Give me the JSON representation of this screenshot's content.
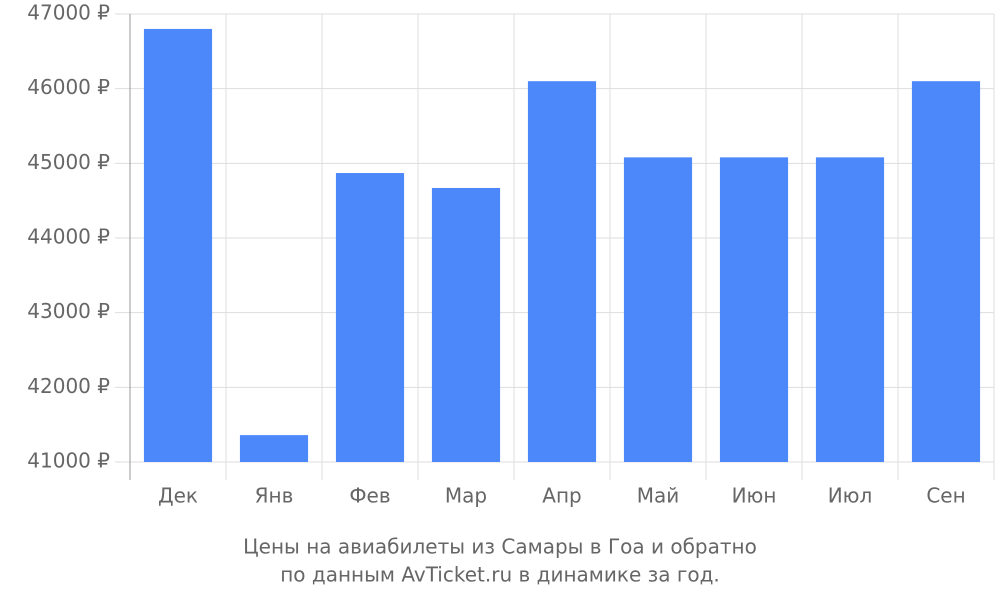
{
  "chart_data": {
    "type": "bar",
    "title": [
      "Цены на авиабилеты из Самары в Гоа и обратно",
      "по данным AvTicket.ru в динамике за год."
    ],
    "categories": [
      "Дек",
      "Янв",
      "Фев",
      "Мар",
      "Апр",
      "Май",
      "Июн",
      "Июл",
      "Сен"
    ],
    "values": [
      46800,
      41360,
      44870,
      44670,
      46100,
      45080,
      45080,
      45080,
      46100
    ],
    "color": "#4d88fb",
    "ylim": [
      41000,
      47000
    ],
    "yticks": [
      {
        "value": 41000,
        "label": "41000 ₽"
      },
      {
        "value": 42000,
        "label": "42000 ₽"
      },
      {
        "value": 43000,
        "label": "43000 ₽"
      },
      {
        "value": 44000,
        "label": "44000 ₽"
      },
      {
        "value": 45000,
        "label": "45000 ₽"
      },
      {
        "value": 46000,
        "label": "46000 ₽"
      },
      {
        "value": 47000,
        "label": "47000 ₽"
      }
    ],
    "grid": true
  }
}
